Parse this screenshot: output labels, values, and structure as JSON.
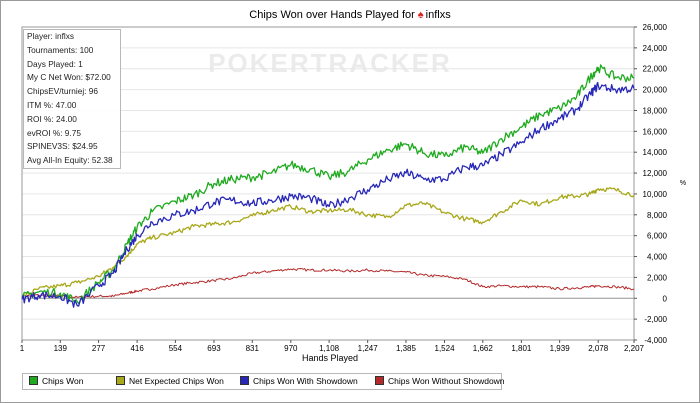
{
  "window": {
    "title": "Chips Won over Hands Played for",
    "player_name": "inflxs",
    "icon": "spade-icon",
    "watermark": "POKERTRACKER"
  },
  "stats_box": [
    "Player: inflxs",
    "Tournaments: 100",
    "Days Played: 1",
    "My C Net Won: $72.00",
    "ChipsEV/turniej: 96",
    "ITM %: 47.00",
    "ROI %: 24.00",
    "evROI %: 9.75",
    "SPINEV3S: $24.95",
    "Avg All-In Equity: 52.38"
  ],
  "legend": [
    {
      "label": "Chips Won",
      "color": "#1faa1f"
    },
    {
      "label": "Net Expected Chips Won",
      "color": "#a8a81a"
    },
    {
      "label": "Chips Won With Showdown",
      "color": "#2828b8"
    },
    {
      "label": "Chips Won Without Showdown",
      "color": "#b42a2a"
    }
  ],
  "chart_data": {
    "type": "line",
    "title": "Chips Won over Hands Played for inflxs",
    "xlabel": "Hands Played",
    "ylabel": "",
    "ylabel_unit": "%",
    "xlim": [
      1,
      2207
    ],
    "ylim": [
      -4000,
      26000
    ],
    "x_ticks": [
      "1",
      "139",
      "277",
      "416",
      "554",
      "693",
      "831",
      "970",
      "1,108",
      "1,247",
      "1,385",
      "1,524",
      "1,662",
      "1,801",
      "1,939",
      "2,078",
      "2,207"
    ],
    "y_ticks": [
      "-4,000",
      "-2,000",
      "0",
      "2,000",
      "4,000",
      "6,000",
      "8,000",
      "10,000",
      "12,000",
      "14,000",
      "16,000",
      "18,000",
      "20,000",
      "22,000",
      "24,000",
      "26,000"
    ],
    "grid": true,
    "legend_position": "bottom",
    "series": [
      {
        "name": "Chips Won",
        "color": "#1faa1f",
        "x": [
          1,
          60,
          139,
          200,
          277,
          330,
          380,
          416,
          470,
          554,
          620,
          693,
          760,
          831,
          900,
          970,
          1040,
          1108,
          1180,
          1247,
          1320,
          1385,
          1450,
          1524,
          1600,
          1662,
          1730,
          1801,
          1870,
          1939,
          2000,
          2050,
          2078,
          2140,
          2207
        ],
        "values": [
          100,
          600,
          500,
          -300,
          1500,
          2700,
          5200,
          6800,
          8300,
          9300,
          9900,
          11000,
          11400,
          11600,
          12000,
          12800,
          12400,
          11600,
          12200,
          13300,
          14200,
          14800,
          13900,
          13600,
          14500,
          13900,
          15300,
          16400,
          17600,
          18200,
          19300,
          21200,
          22100,
          21200,
          21100
        ]
      },
      {
        "name": "Net Expected Chips Won",
        "color": "#a8a81a",
        "x": [
          1,
          60,
          139,
          200,
          277,
          330,
          380,
          416,
          470,
          554,
          620,
          693,
          760,
          831,
          900,
          970,
          1040,
          1108,
          1180,
          1247,
          1320,
          1385,
          1450,
          1524,
          1600,
          1662,
          1730,
          1801,
          1870,
          1939,
          2000,
          2050,
          2078,
          2140,
          2207
        ],
        "values": [
          100,
          900,
          1200,
          1500,
          2100,
          3000,
          4100,
          5200,
          5800,
          6300,
          6900,
          7100,
          7300,
          7900,
          8400,
          8800,
          8300,
          8400,
          8500,
          8000,
          7800,
          8900,
          9100,
          8200,
          7600,
          7300,
          8300,
          9400,
          9000,
          9700,
          9800,
          10000,
          10500,
          10400,
          9900
        ]
      },
      {
        "name": "Chips Won With Showdown",
        "color": "#2828b8",
        "x": [
          1,
          60,
          139,
          200,
          277,
          330,
          380,
          416,
          470,
          554,
          620,
          693,
          760,
          831,
          900,
          970,
          1040,
          1108,
          1180,
          1247,
          1320,
          1385,
          1450,
          1524,
          1600,
          1662,
          1730,
          1801,
          1870,
          1939,
          2000,
          2050,
          2078,
          2140,
          2207
        ],
        "values": [
          -100,
          300,
          200,
          -700,
          1200,
          2400,
          4700,
          6000,
          7300,
          8000,
          8400,
          9200,
          9400,
          9100,
          9400,
          9800,
          9600,
          8800,
          9600,
          10400,
          11400,
          12000,
          11400,
          11400,
          12600,
          12700,
          13800,
          14900,
          16300,
          17200,
          18100,
          19600,
          20400,
          20000,
          20100
        ]
      },
      {
        "name": "Chips Won Without Showdown",
        "color": "#b42a2a",
        "x": [
          1,
          60,
          139,
          200,
          277,
          330,
          380,
          416,
          470,
          554,
          620,
          693,
          760,
          831,
          900,
          970,
          1040,
          1108,
          1180,
          1247,
          1320,
          1385,
          1450,
          1524,
          1600,
          1662,
          1730,
          1801,
          1870,
          1939,
          2000,
          2050,
          2078,
          2140,
          2207
        ],
        "values": [
          200,
          300,
          200,
          100,
          200,
          200,
          500,
          700,
          900,
          1300,
          1500,
          1700,
          1900,
          2400,
          2600,
          2800,
          2700,
          2700,
          2600,
          2700,
          2600,
          2500,
          2200,
          2100,
          1800,
          1100,
          1200,
          1100,
          1100,
          900,
          1000,
          1100,
          1200,
          1100,
          900
        ]
      }
    ]
  }
}
